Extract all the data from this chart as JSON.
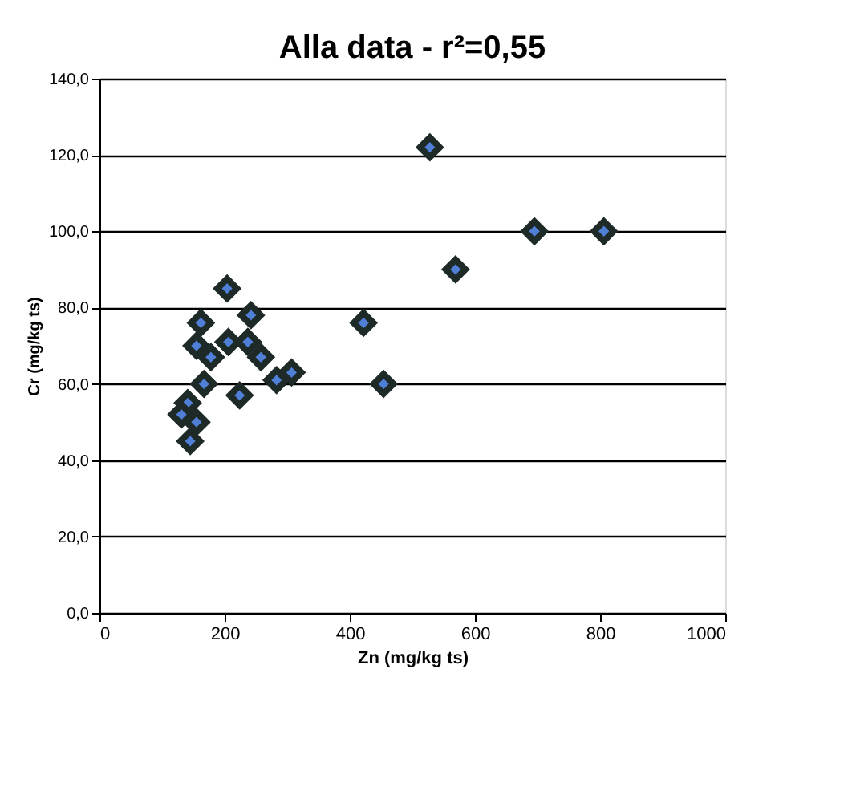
{
  "chart_data": {
    "type": "scatter",
    "title": "Alla data - r²=0,55",
    "xlabel": "Zn (mg/kg ts)",
    "ylabel": "Cr (mg/kg ts)",
    "x": [
      204,
      162,
      242,
      155,
      206,
      178,
      237,
      258,
      307,
      283,
      167,
      224,
      141,
      155,
      145,
      131,
      422,
      454,
      528,
      695,
      806,
      569
    ],
    "series": [
      {
        "color": "#4f7fd6",
        "values": [
          85,
          76,
          78,
          70,
          71,
          67,
          71,
          67,
          63,
          61,
          60,
          57,
          55,
          50,
          45,
          52,
          76,
          60,
          122,
          100,
          100,
          90
        ]
      }
    ],
    "marker": "diamond",
    "grid": "y",
    "xlim": [
      0,
      1000
    ],
    "xticks": [
      0,
      200,
      400,
      600,
      800,
      1000
    ],
    "ylim": [
      0,
      140
    ],
    "yticks": [
      {
        "value": 0,
        "label": "0,0"
      },
      {
        "value": 20,
        "label": "20,0"
      },
      {
        "value": 40,
        "label": "40,0"
      },
      {
        "value": 60,
        "label": "60,0"
      },
      {
        "value": 80,
        "label": "80,0"
      },
      {
        "value": 100,
        "label": "100,0"
      },
      {
        "value": 120,
        "label": "120,0"
      },
      {
        "value": 140,
        "label": "140,0"
      }
    ]
  }
}
